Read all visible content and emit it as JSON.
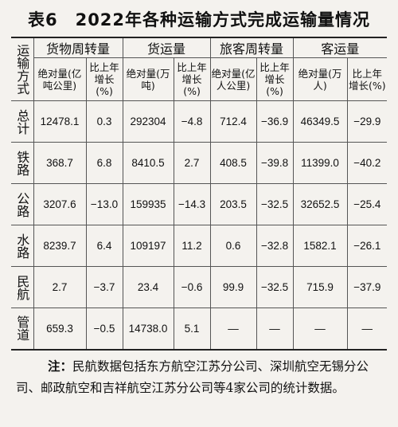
{
  "title": "表6　2022年各种运输方式完成运输量情况",
  "corner": "运输方式",
  "groups": [
    "货物周转量",
    "货运量",
    "旅客周转量",
    "客运量"
  ],
  "subheaders": [
    "绝对量(亿吨公里)",
    "比上年增长(%)",
    "绝对量(万吨)",
    "比上年增长(%)",
    "绝对量(亿人公里)",
    "比上年增长(%)",
    "绝对量(万人)",
    "比上年增长(%)"
  ],
  "rows": [
    {
      "label": "总计",
      "values": [
        "12478.1",
        "0.3",
        "292304",
        "−4.8",
        "712.4",
        "−36.9",
        "46349.5",
        "−29.9"
      ]
    },
    {
      "label": "铁路",
      "values": [
        "368.7",
        "6.8",
        "8410.5",
        "2.7",
        "408.5",
        "−39.8",
        "11399.0",
        "−40.2"
      ]
    },
    {
      "label": "公路",
      "values": [
        "3207.6",
        "−13.0",
        "159935",
        "−14.3",
        "203.5",
        "−32.5",
        "32652.5",
        "−25.4"
      ]
    },
    {
      "label": "水路",
      "values": [
        "8239.7",
        "6.4",
        "109197",
        "11.2",
        "0.6",
        "−32.8",
        "1582.1",
        "−26.1"
      ]
    },
    {
      "label": "民航",
      "values": [
        "2.7",
        "−3.7",
        "23.4",
        "−0.6",
        "99.9",
        "−32.5",
        "715.9",
        "−37.9"
      ]
    },
    {
      "label": "管道",
      "values": [
        "659.3",
        "−0.5",
        "14738.0",
        "5.1",
        "—",
        "—",
        "—",
        "—"
      ]
    }
  ],
  "note": {
    "label": "注：",
    "text": "民航数据包括东方航空江苏分公司、深圳航空无锡分公司、邮政航空和吉祥航空江苏分公司等4家公司的统计数据。"
  }
}
